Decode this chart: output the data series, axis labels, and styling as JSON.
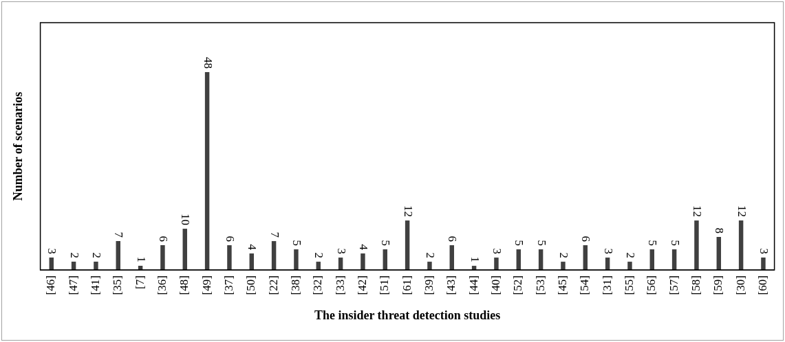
{
  "chart_data": {
    "type": "bar",
    "xlabel": "The insider threat detection studies",
    "ylabel": "Number of scenarios",
    "categories": [
      "[46]",
      "[47]",
      "[41]",
      "[35]",
      "[7]",
      "[36]",
      "[48]",
      "[49]",
      "[37]",
      "[50]",
      "[22]",
      "[38]",
      "[32]",
      "[33]",
      "[42]",
      "[51]",
      "[61]",
      "[39]",
      "[43]",
      "[44]",
      "[40]",
      "[52]",
      "[53]",
      "[45]",
      "[54]",
      "[31]",
      "[55]",
      "[56]",
      "[57]",
      "[58]",
      "[59]",
      "[30]",
      "[60]"
    ],
    "values": [
      3,
      2,
      2,
      7,
      1,
      6,
      10,
      48,
      6,
      4,
      7,
      5,
      2,
      3,
      4,
      5,
      12,
      2,
      6,
      1,
      3,
      5,
      5,
      2,
      6,
      3,
      2,
      5,
      5,
      12,
      8,
      12,
      3
    ],
    "color": "#404040",
    "data_labels": true,
    "grid": false,
    "legend": false
  }
}
